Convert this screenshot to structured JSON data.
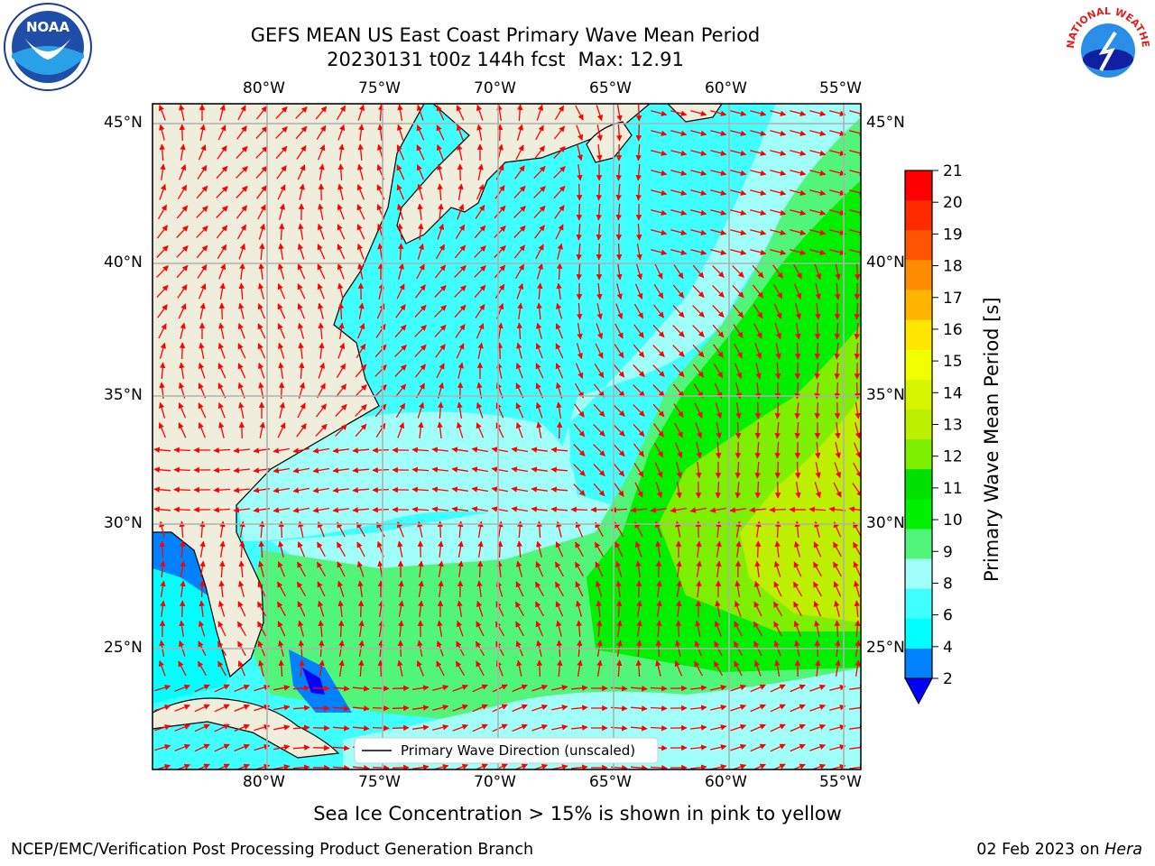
{
  "title": {
    "line1": "GEFS MEAN US East Coast Primary Wave Mean Period",
    "line2_run": "20230131 t00z 144h fcst",
    "line2_max": "Max: 12.91"
  },
  "map": {
    "lon_ticks_top": [
      "80°W",
      "75°W",
      "70°W",
      "65°W",
      "60°W",
      "55°W"
    ],
    "lon_ticks_bottom": [
      "80°W",
      "75°W",
      "70°W",
      "65°W",
      "60°W",
      "55°W"
    ],
    "lat_ticks_left": [
      "45°N",
      "40°N",
      "35°N",
      "30°N",
      "25°N"
    ],
    "lat_ticks_right": [
      "45°N",
      "40°N",
      "35°N",
      "30°N",
      "25°N"
    ],
    "legend_label": "Primary Wave Direction (unscaled)",
    "colors": {
      "land": "#efeedc",
      "arrow": "#ff0000",
      "grid": "#b0b0b0",
      "coast": "#000000"
    }
  },
  "colorbar": {
    "label": "Primary Wave Mean Period [s]",
    "ticks": [
      "21",
      "20",
      "19",
      "18",
      "17",
      "16",
      "15",
      "14",
      "13",
      "12",
      "11",
      "10",
      "9",
      "8",
      "6",
      "4",
      "2"
    ],
    "colors": [
      "#ff0000",
      "#ff2a00",
      "#ff5500",
      "#ff8c00",
      "#ffb400",
      "#ffe600",
      "#f0ff00",
      "#d8f500",
      "#bcf000",
      "#7cf000",
      "#00e000",
      "#00f000",
      "#50f57a",
      "#a0fff8",
      "#40ffff",
      "#00ffff",
      "#0082ff"
    ],
    "under_color": "#0000ff"
  },
  "logos": {
    "noaa": "NOAA",
    "nws": "NATIONAL WEATHER SERVICE"
  },
  "bottom_note": "Sea Ice Concentration > 15% is shown in pink to yellow",
  "footer": {
    "left": "NCEP/EMC/Verification Post Processing Product Generation Branch",
    "right_date": "02 Feb 2023 on",
    "right_host": "Hera"
  }
}
